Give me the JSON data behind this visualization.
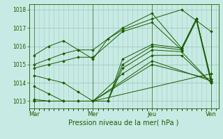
{
  "bg_color": "#c8eae4",
  "line_color": "#1a5c00",
  "grid_color": "#a0ccbf",
  "ylim": [
    1012.6,
    1018.3
  ],
  "yticks": [
    1013,
    1014,
    1015,
    1016,
    1017,
    1018
  ],
  "xtick_labels": [
    "Mar",
    "Mer",
    "Jeu",
    "Ven"
  ],
  "xtick_positions": [
    0,
    96,
    192,
    288
  ],
  "xlim": [
    -8,
    300
  ],
  "xlabel": "Pression niveau de la mer( hPa )",
  "lines": [
    {
      "x": [
        0,
        24,
        48,
        72,
        96,
        120,
        144,
        192,
        240,
        288
      ],
      "y": [
        1015.5,
        1016.0,
        1016.3,
        1015.8,
        1015.3,
        1016.4,
        1016.9,
        1017.5,
        1018.0,
        1016.8
      ]
    },
    {
      "x": [
        0,
        24,
        48,
        72,
        96,
        144,
        192,
        240,
        264,
        288
      ],
      "y": [
        1015.0,
        1015.3,
        1015.6,
        1015.8,
        1015.8,
        1017.0,
        1017.8,
        1015.9,
        1017.5,
        1014.1
      ]
    },
    {
      "x": [
        0,
        24,
        48,
        72,
        96,
        144,
        192,
        240,
        264,
        288
      ],
      "y": [
        1014.8,
        1015.0,
        1015.2,
        1015.4,
        1015.4,
        1016.8,
        1017.3,
        1015.8,
        1017.5,
        1014.2
      ]
    },
    {
      "x": [
        0,
        24,
        48,
        72,
        96,
        120,
        144,
        192,
        240,
        264,
        288
      ],
      "y": [
        1014.4,
        1014.2,
        1014.0,
        1013.5,
        1013.0,
        1013.0,
        1015.3,
        1016.1,
        1015.9,
        1017.5,
        1014.1
      ]
    },
    {
      "x": [
        0,
        24,
        48,
        72,
        96,
        120,
        144,
        192,
        240,
        264,
        288
      ],
      "y": [
        1013.8,
        1013.4,
        1013.0,
        1013.0,
        1013.0,
        1013.0,
        1015.0,
        1016.0,
        1015.8,
        1017.4,
        1014.0
      ]
    },
    {
      "x": [
        0,
        24,
        48,
        72,
        96,
        120,
        144,
        192,
        240,
        288
      ],
      "y": [
        1013.1,
        1013.0,
        1013.0,
        1013.0,
        1013.0,
        1013.0,
        1014.8,
        1015.8,
        1015.7,
        1014.0
      ]
    },
    {
      "x": [
        0,
        96,
        144,
        192,
        240,
        288
      ],
      "y": [
        1013.0,
        1013.0,
        1014.5,
        1015.5,
        1015.5,
        1014.0
      ]
    },
    {
      "x": [
        0,
        96,
        192,
        288
      ],
      "y": [
        1013.0,
        1013.0,
        1015.2,
        1014.1
      ]
    },
    {
      "x": [
        0,
        96,
        192,
        288
      ],
      "y": [
        1013.0,
        1013.0,
        1015.0,
        1014.2
      ]
    },
    {
      "x": [
        0,
        96,
        288
      ],
      "y": [
        1013.0,
        1013.0,
        1014.5
      ]
    }
  ]
}
